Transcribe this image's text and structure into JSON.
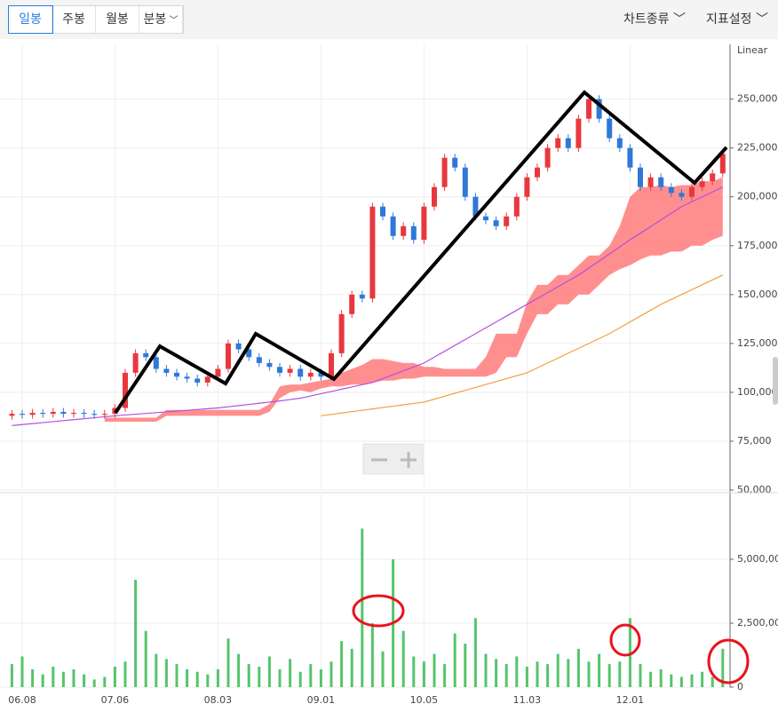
{
  "toolbar": {
    "tabs": [
      "일봉",
      "주봉",
      "월봉",
      "분봉"
    ],
    "selected": 0,
    "menus": [
      "차트종류",
      "지표설정"
    ]
  },
  "chart_data": {
    "type": "candlestick",
    "scale_label": "Linear",
    "grid": true,
    "up_color": "#e8383d",
    "down_color": "#2f78d8",
    "categories": [
      null,
      "06.08",
      null,
      null,
      null,
      null,
      null,
      null,
      null,
      null,
      "07.06",
      null,
      null,
      null,
      null,
      null,
      null,
      null,
      null,
      null,
      "08.03",
      null,
      null,
      null,
      null,
      null,
      null,
      null,
      null,
      null,
      "09.01",
      null,
      null,
      null,
      null,
      null,
      null,
      null,
      null,
      null,
      "10.05",
      null,
      null,
      null,
      null,
      null,
      null,
      null,
      null,
      null,
      "11.03",
      null,
      null,
      null,
      null,
      null,
      null,
      null,
      null,
      null,
      "12.01",
      null,
      null,
      null,
      null,
      null,
      null,
      null,
      null,
      null
    ],
    "open": [
      88000,
      89000,
      88500,
      89500,
      89000,
      90000,
      89000,
      89500,
      89000,
      88500,
      89000,
      92000,
      110000,
      120000,
      118000,
      112000,
      110000,
      108000,
      107000,
      105000,
      108000,
      112000,
      125000,
      122000,
      118000,
      115000,
      113000,
      110000,
      112000,
      108000,
      110000,
      108000,
      120000,
      140000,
      150000,
      148000,
      195000,
      190000,
      180000,
      185000,
      178000,
      195000,
      205000,
      220000,
      215000,
      200000,
      190000,
      188000,
      185000,
      190000,
      200000,
      210000,
      215000,
      225000,
      230000,
      225000,
      240000,
      250000,
      240000,
      230000,
      225000,
      215000,
      205000,
      210000,
      205000,
      202000,
      200000,
      205000,
      208000,
      212000
    ],
    "high": [
      91000,
      91000,
      91500,
      91500,
      92000,
      92000,
      91500,
      91500,
      91000,
      91000,
      94000,
      112000,
      122000,
      122000,
      120000,
      114000,
      112000,
      110000,
      109000,
      110000,
      114000,
      127000,
      127000,
      124000,
      120000,
      117000,
      115000,
      114000,
      114000,
      112000,
      112000,
      122000,
      142000,
      152000,
      152000,
      197000,
      197000,
      192000,
      187000,
      187000,
      197000,
      207000,
      222000,
      222000,
      217000,
      202000,
      192000,
      190000,
      192000,
      202000,
      212000,
      217000,
      227000,
      232000,
      232000,
      242000,
      252000,
      252000,
      242000,
      232000,
      227000,
      217000,
      212000,
      212000,
      207000,
      204000,
      207000,
      210000,
      214000,
      224000
    ],
    "low": [
      86000,
      86500,
      86500,
      87000,
      87000,
      87000,
      87000,
      87000,
      86500,
      86500,
      87000,
      90000,
      108000,
      116000,
      110000,
      108000,
      106000,
      105000,
      103000,
      103000,
      106000,
      110000,
      120000,
      116000,
      113000,
      111000,
      108000,
      108000,
      106000,
      106000,
      106000,
      106000,
      118000,
      138000,
      146000,
      146000,
      188000,
      178000,
      178000,
      176000,
      176000,
      193000,
      203000,
      213000,
      198000,
      188000,
      186000,
      183000,
      183000,
      188000,
      198000,
      208000,
      213000,
      223000,
      223000,
      223000,
      238000,
      238000,
      228000,
      223000,
      213000,
      203000,
      203000,
      203000,
      200000,
      198000,
      198000,
      203000,
      206000,
      210000
    ],
    "close": [
      89000,
      88500,
      89500,
      89000,
      90000,
      89000,
      89500,
      89000,
      88500,
      89000,
      92000,
      110000,
      120000,
      118000,
      112000,
      110000,
      108000,
      107000,
      105000,
      108000,
      112000,
      125000,
      122000,
      118000,
      115000,
      113000,
      110000,
      112000,
      108000,
      110000,
      108000,
      120000,
      140000,
      150000,
      148000,
      195000,
      190000,
      180000,
      185000,
      178000,
      195000,
      205000,
      220000,
      215000,
      200000,
      190000,
      188000,
      185000,
      190000,
      200000,
      210000,
      215000,
      225000,
      230000,
      225000,
      240000,
      250000,
      240000,
      230000,
      225000,
      215000,
      205000,
      210000,
      205000,
      202000,
      200000,
      205000,
      208000,
      212000,
      222000
    ],
    "ylim": [
      50000,
      278000
    ],
    "yticks": [
      {
        "value": 50000,
        "label": "50,000"
      },
      {
        "value": 75000,
        "label": "75,000"
      },
      {
        "value": 100000,
        "label": "100,000"
      },
      {
        "value": 125000,
        "label": "125,000"
      },
      {
        "value": 150000,
        "label": "150,000"
      },
      {
        "value": 175000,
        "label": "175,000"
      },
      {
        "value": 200000,
        "label": "200,000"
      },
      {
        "value": 225000,
        "label": "225,000"
      },
      {
        "value": 250000,
        "label": "250,000"
      }
    ],
    "cloud": {
      "color": "#ff7b7b",
      "upper": [
        null,
        null,
        null,
        null,
        null,
        null,
        null,
        null,
        null,
        87000,
        87000,
        87000,
        87000,
        87000,
        87000,
        91000,
        91000,
        91000,
        91000,
        91000,
        91000,
        91000,
        91000,
        91000,
        91000,
        94000,
        103000,
        104000,
        104000,
        105000,
        106000,
        107000,
        110000,
        112000,
        114000,
        117000,
        117000,
        116000,
        115000,
        115000,
        113000,
        113000,
        112000,
        112000,
        112000,
        112000,
        118000,
        130000,
        130000,
        130000,
        146000,
        155000,
        155000,
        160000,
        160000,
        165000,
        170000,
        170000,
        175000,
        185000,
        200000,
        205000,
        205000,
        206000,
        205000,
        206000,
        206000,
        208000,
        208000,
        210000
      ],
      "lower": [
        null,
        null,
        null,
        null,
        null,
        null,
        null,
        null,
        null,
        85000,
        85000,
        85000,
        85000,
        85000,
        85000,
        88000,
        88000,
        88000,
        88000,
        88000,
        88000,
        88000,
        88000,
        88000,
        88000,
        90000,
        97000,
        100000,
        101000,
        100000,
        102000,
        103000,
        103000,
        104000,
        104000,
        105000,
        106000,
        106000,
        107000,
        107000,
        108000,
        108000,
        108000,
        108000,
        108000,
        108000,
        108000,
        110000,
        118000,
        118000,
        130000,
        140000,
        140000,
        145000,
        145000,
        150000,
        150000,
        155000,
        160000,
        163000,
        165000,
        168000,
        170000,
        170000,
        172000,
        172000,
        175000,
        175000,
        178000,
        180000
      ]
    },
    "lines": [
      {
        "color": "#b34fe0",
        "values": [
          83000,
          83500,
          84000,
          84500,
          85000,
          85500,
          86000,
          86500,
          87000,
          87500,
          88000,
          88400,
          88800,
          89200,
          89600,
          90000,
          90400,
          90800,
          91200,
          91600,
          92000,
          92600,
          93200,
          93800,
          94400,
          95000,
          95600,
          96300,
          97000,
          98100,
          99300,
          100400,
          101600,
          102700,
          103900,
          105000,
          107000,
          109000,
          111000,
          113000,
          115000,
          118000,
          121000,
          124000,
          127000,
          130000,
          133000,
          136000,
          139000,
          142000,
          145000,
          148000,
          151000,
          154000,
          157000,
          160000,
          163600,
          167200,
          170800,
          174400,
          178000,
          181400,
          184800,
          188200,
          191600,
          195000,
          197500,
          200000,
          202500,
          205000
        ]
      },
      {
        "color": "#f0a040",
        "values": [
          null,
          null,
          null,
          null,
          null,
          null,
          null,
          null,
          null,
          null,
          null,
          null,
          null,
          null,
          null,
          null,
          null,
          null,
          null,
          null,
          null,
          null,
          null,
          null,
          null,
          null,
          null,
          null,
          null,
          null,
          88000,
          88700,
          89400,
          90100,
          90800,
          91500,
          92200,
          92900,
          93600,
          94300,
          95000,
          96500,
          98000,
          99500,
          101000,
          102500,
          104000,
          105500,
          107000,
          108500,
          110000,
          112500,
          115000,
          117500,
          120000,
          122500,
          125000,
          127500,
          130000,
          133000,
          136000,
          139000,
          142000,
          145000,
          147500,
          150000,
          152500,
          155000,
          157500,
          160000
        ]
      }
    ],
    "volume": {
      "color": "#55c46b",
      "ylim": [
        0,
        7500000
      ],
      "yticks": [
        0,
        {
          "value": 2500000,
          "label": "2,500,000"
        },
        {
          "value": 5000000,
          "label": "5,000,000"
        }
      ],
      "values": [
        900000,
        1200000,
        700000,
        500000,
        800000,
        600000,
        700000,
        500000,
        300000,
        400000,
        800000,
        1000000,
        4200000,
        2200000,
        1300000,
        1100000,
        900000,
        700000,
        600000,
        500000,
        700000,
        1900000,
        1300000,
        900000,
        800000,
        1200000,
        700000,
        1100000,
        600000,
        900000,
        700000,
        1000000,
        1800000,
        1500000,
        6200000,
        2500000,
        1400000,
        5000000,
        2200000,
        1200000,
        1000000,
        1300000,
        900000,
        2100000,
        1700000,
        2700000,
        1300000,
        1100000,
        900000,
        1200000,
        800000,
        1000000,
        900000,
        1300000,
        1100000,
        1500000,
        1000000,
        1300000,
        900000,
        1000000,
        2700000,
        900000,
        600000,
        700000,
        500000,
        400000,
        500000,
        600000,
        400000,
        1500000
      ]
    }
  }
}
